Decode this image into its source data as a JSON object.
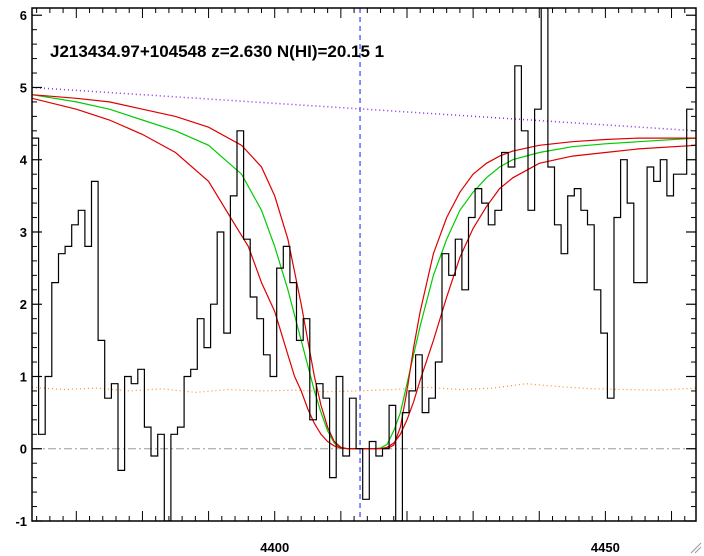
{
  "chart_data": {
    "type": "line",
    "title": "J213434.97+104548 z=2.630 N(HI)=20.15 1",
    "xlabel": "",
    "ylabel": "",
    "xlim": [
      4363.3,
      4463.7
    ],
    "ylim": [
      -1.0,
      6.1
    ],
    "x_ticks": [
      4400,
      4450
    ],
    "x_tick_labels": [
      "4400",
      "4450"
    ],
    "y_ticks": [
      -1,
      0,
      1,
      2,
      3,
      4,
      5,
      6
    ],
    "y_tick_labels": [
      "-1",
      "0",
      "1",
      "2",
      "3",
      "4",
      "5",
      "6"
    ],
    "grid": false,
    "legend": "none",
    "absorber_center": 4412.9,
    "continuum": {
      "x": [
        4363.3,
        4463.7
      ],
      "y": [
        5.0,
        4.4
      ]
    },
    "zero_level": 0,
    "spectrum": {
      "x": [
        4363.3,
        4364.3,
        4365.3,
        4366.3,
        4367.3,
        4368.3,
        4369.3,
        4370.3,
        4371.3,
        4372.3,
        4373.3,
        4374.3,
        4375.3,
        4376.3,
        4377.3,
        4378.3,
        4379.3,
        4380.3,
        4381.3,
        4382.3,
        4383.3,
        4384.3,
        4385.3,
        4386.3,
        4387.3,
        4388.3,
        4389.3,
        4390.3,
        4391.3,
        4392.3,
        4393.3,
        4394.3,
        4395.3,
        4396.3,
        4397.3,
        4398.3,
        4399.3,
        4400.3,
        4401.3,
        4402.3,
        4403.3,
        4404.3,
        4405.3,
        4406.3,
        4407.3,
        4408.3,
        4409.3,
        4410.3,
        4411.3,
        4412.3,
        4413.3,
        4414.3,
        4415.3,
        4416.3,
        4417.3,
        4418.3,
        4419.3,
        4420.3,
        4421.3,
        4422.3,
        4423.3,
        4424.3,
        4425.3,
        4426.3,
        4427.3,
        4428.3,
        4429.3,
        4430.3,
        4431.3,
        4432.3,
        4433.3,
        4434.3,
        4435.3,
        4436.3,
        4437.3,
        4438.3,
        4439.3,
        4440.3,
        4441.3,
        4442.3,
        4443.3,
        4444.3,
        4445.3,
        4446.3,
        4447.3,
        4448.3,
        4449.3,
        4450.3,
        4451.3,
        4452.3,
        4453.3,
        4454.3,
        4455.3,
        4456.3,
        4457.3,
        4458.3,
        4459.3,
        4460.3,
        4461.3,
        4462.3
      ],
      "y": [
        4.3,
        0.2,
        1.0,
        2.3,
        2.7,
        2.8,
        3.1,
        3.3,
        2.8,
        3.7,
        1.5,
        0.7,
        0.9,
        -0.3,
        1.0,
        0.9,
        1.1,
        0.3,
        -0.1,
        0.2,
        -1.0,
        0.2,
        0.3,
        1.0,
        1.1,
        1.8,
        1.4,
        2.0,
        3.0,
        1.6,
        3.5,
        4.4,
        2.9,
        2.1,
        1.8,
        1.3,
        1.0,
        2.5,
        2.8,
        2.3,
        1.5,
        1.8,
        0.4,
        0.9,
        0.7,
        -0.4,
        1.0,
        -0.1,
        0.7,
        0.0,
        -0.7,
        0.1,
        -0.1,
        0.0,
        0.6,
        -1.0,
        0.5,
        0.8,
        1.3,
        0.5,
        0.7,
        1.2,
        2.7,
        2.4,
        2.9,
        2.2,
        3.2,
        3.6,
        3.4,
        3.1,
        3.3,
        4.1,
        3.9,
        5.3,
        4.4,
        3.3,
        4.7,
        6.1,
        3.9,
        3.1,
        2.7,
        3.5,
        3.6,
        3.3,
        3.1,
        2.2,
        1.6,
        0.7,
        3.2,
        4.0,
        3.4,
        2.3,
        2.3,
        3.9,
        3.7,
        4.0,
        3.5,
        3.8,
        3.8,
        4.7
      ]
    },
    "series": [
      {
        "color": "#00cc00",
        "x": [
          4363.3,
          4370,
          4375,
          4380,
          4385,
          4390,
          4395,
          4398,
          4400,
          4402,
          4404,
          4406,
          4407,
          4408,
          4409,
          4410,
          4411,
          4412,
          4413,
          4414,
          4415,
          4416,
          4417,
          4418,
          4419,
          4420,
          4421,
          4422,
          4424,
          4426,
          4428,
          4430,
          4432,
          4434,
          4436,
          4440,
          4445,
          4450,
          4455,
          4463.7
        ],
        "y": [
          4.9,
          4.8,
          4.7,
          4.55,
          4.4,
          4.2,
          3.8,
          3.3,
          2.8,
          2.2,
          1.5,
          0.8,
          0.5,
          0.25,
          0.08,
          0.01,
          0.0,
          0.0,
          0.0,
          0.0,
          0.0,
          0.01,
          0.06,
          0.25,
          0.5,
          0.9,
          1.3,
          1.7,
          2.4,
          2.9,
          3.3,
          3.55,
          3.75,
          3.9,
          4.0,
          4.1,
          4.18,
          4.22,
          4.25,
          4.3
        ]
      },
      {
        "color": "#dd0000",
        "x": [
          4363.3,
          4370,
          4375,
          4380,
          4385,
          4390,
          4395,
          4398,
          4400,
          4402,
          4404,
          4405,
          4406,
          4407,
          4408,
          4409,
          4410,
          4411,
          4412,
          4413,
          4414,
          4415,
          4416,
          4417,
          4418,
          4419,
          4420,
          4421,
          4422,
          4424,
          4426,
          4428,
          4430,
          4432,
          4434,
          4436,
          4440,
          4445,
          4450,
          4455,
          4463.7
        ],
        "y": [
          4.9,
          4.85,
          4.8,
          4.7,
          4.6,
          4.45,
          4.2,
          3.9,
          3.5,
          2.9,
          2.0,
          1.5,
          1.0,
          0.6,
          0.3,
          0.1,
          0.02,
          0.0,
          0.0,
          0.0,
          0.0,
          0.0,
          0.0,
          0.0,
          0.05,
          0.3,
          0.8,
          1.4,
          1.9,
          2.7,
          3.2,
          3.55,
          3.8,
          3.95,
          4.05,
          4.12,
          4.2,
          4.25,
          4.28,
          4.3,
          4.3
        ]
      },
      {
        "color": "#dd0000",
        "x": [
          4363.3,
          4370,
          4375,
          4380,
          4385,
          4390,
          4394,
          4396,
          4398,
          4400,
          4401,
          4402,
          4403,
          4404,
          4405,
          4406,
          4407,
          4408,
          4409,
          4410,
          4411,
          4412,
          4413,
          4414,
          4415,
          4416,
          4417,
          4418,
          4419,
          4420,
          4421,
          4422,
          4424,
          4426,
          4428,
          4430,
          4432,
          4434,
          4436,
          4440,
          4445,
          4450,
          4455,
          4463.7
        ],
        "y": [
          4.85,
          4.7,
          4.55,
          4.35,
          4.1,
          3.7,
          3.1,
          2.8,
          2.3,
          1.9,
          1.6,
          1.3,
          1.0,
          0.8,
          0.55,
          0.35,
          0.2,
          0.1,
          0.04,
          0.01,
          0.0,
          0.0,
          0.0,
          0.0,
          0.0,
          0.0,
          0.02,
          0.08,
          0.2,
          0.4,
          0.65,
          0.95,
          1.5,
          2.1,
          2.65,
          3.05,
          3.35,
          3.6,
          3.75,
          3.95,
          4.05,
          4.1,
          4.15,
          4.2
        ]
      },
      {
        "color": "#ff8c1a",
        "dotted": true,
        "x": [
          4363.3,
          4368,
          4373,
          4378,
          4383,
          4388,
          4393,
          4398,
          4403,
          4408,
          4413,
          4418,
          4423,
          4428,
          4433,
          4438,
          4443,
          4448,
          4453,
          4458,
          4463.7
        ],
        "y": [
          0.85,
          0.82,
          0.84,
          0.8,
          0.83,
          0.78,
          0.82,
          0.8,
          0.81,
          0.79,
          0.8,
          0.82,
          0.85,
          0.82,
          0.84,
          0.9,
          0.86,
          0.83,
          0.82,
          0.81,
          0.84
        ]
      }
    ]
  }
}
